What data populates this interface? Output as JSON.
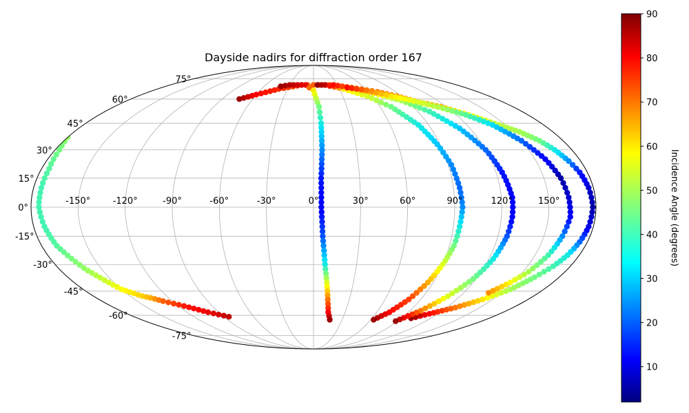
{
  "chart_data": {
    "type": "scatter",
    "projection": "mollweide",
    "title": "Dayside nadirs for diffraction order 167",
    "xlabel": "",
    "ylabel": "",
    "x_ticks": [
      "-150°",
      "-120°",
      "-90°",
      "-60°",
      "-30°",
      "0°",
      "30°",
      "60°",
      "90°",
      "120°",
      "150°"
    ],
    "y_ticks": [
      "75°",
      "60°",
      "45°",
      "30°",
      "15°",
      "0°",
      "-15°",
      "-30°",
      "-45°",
      "-60°",
      "-75°"
    ],
    "grid": true,
    "colorbar": {
      "label": "Incidence Angle (degrees)",
      "colormap": "jet",
      "range": [
        2,
        90
      ],
      "ticks": [
        "10",
        "20",
        "30",
        "40",
        "50",
        "60",
        "70",
        "80",
        "90"
      ]
    },
    "series": [
      {
        "points": [
          [
            -73,
            60
          ],
          [
            -60,
            63
          ],
          [
            -40,
            67
          ],
          [
            -15,
            70
          ],
          [
            0,
            70
          ],
          [
            20,
            70
          ],
          [
            45,
            68
          ],
          [
            70,
            65
          ],
          [
            85,
            62
          ],
          [
            100,
            58
          ],
          [
            115,
            55
          ],
          [
            130,
            50
          ],
          [
            145,
            44
          ],
          [
            155,
            40
          ],
          [
            163,
            35
          ],
          [
            168,
            30
          ],
          [
            172,
            24
          ],
          [
            175,
            18
          ],
          [
            177,
            10
          ],
          [
            178,
            0
          ],
          [
            177,
            -10
          ],
          [
            175,
            -18
          ],
          [
            172,
            -25
          ],
          [
            168,
            -31
          ],
          [
            162,
            -37
          ],
          [
            154,
            -44
          ],
          [
            142,
            -50
          ],
          [
            128,
            -55
          ],
          [
            112,
            -59
          ],
          [
            100,
            -62
          ]
        ],
        "incidence": [
          88,
          80,
          77,
          73,
          72,
          73,
          72,
          70,
          68,
          68,
          63,
          58,
          52,
          50,
          45,
          35,
          25,
          15,
          8,
          5,
          10,
          22,
          35,
          40,
          45,
          50,
          60,
          70,
          80,
          88
        ]
      },
      {
        "points": [
          [
            -40,
            69
          ],
          [
            -30,
            70
          ],
          [
            -20,
            70
          ],
          [
            -10,
            70
          ],
          [
            0,
            66
          ],
          [
            5,
            55
          ],
          [
            6,
            45
          ],
          [
            6,
            30
          ],
          [
            5,
            15
          ],
          [
            5,
            0
          ],
          [
            6,
            -15
          ],
          [
            8,
            -30
          ],
          [
            10,
            -40
          ],
          [
            12,
            -50
          ],
          [
            14,
            -58
          ],
          [
            17,
            -63
          ]
        ],
        "incidence": [
          88,
          86,
          84,
          82,
          60,
          45,
          35,
          25,
          15,
          12,
          20,
          35,
          55,
          70,
          80,
          88
        ]
      },
      {
        "points": [
          [
            5,
            70
          ],
          [
            15,
            70
          ],
          [
            35,
            67
          ],
          [
            55,
            62
          ],
          [
            70,
            55
          ],
          [
            82,
            44
          ],
          [
            88,
            33
          ],
          [
            92,
            22
          ],
          [
            94,
            10
          ],
          [
            95,
            0
          ],
          [
            94,
            -10
          ],
          [
            93,
            -20
          ],
          [
            90,
            -30
          ],
          [
            86,
            -40
          ],
          [
            80,
            -50
          ],
          [
            72,
            -58
          ],
          [
            63,
            -63
          ]
        ],
        "incidence": [
          88,
          85,
          60,
          55,
          45,
          35,
          30,
          25,
          22,
          25,
          35,
          45,
          55,
          65,
          75,
          80,
          88
        ]
      },
      {
        "points": [
          [
            25,
            70
          ],
          [
            45,
            68
          ],
          [
            65,
            64
          ],
          [
            85,
            59
          ],
          [
            100,
            52
          ],
          [
            112,
            42
          ],
          [
            120,
            30
          ],
          [
            124,
            18
          ],
          [
            127,
            5
          ],
          [
            127,
            -5
          ],
          [
            126,
            -15
          ],
          [
            123,
            -27
          ],
          [
            118,
            -38
          ],
          [
            110,
            -48
          ],
          [
            100,
            -57
          ],
          [
            88,
            -64
          ]
        ],
        "incidence": [
          80,
          70,
          60,
          50,
          40,
          30,
          22,
          15,
          12,
          12,
          20,
          35,
          45,
          55,
          70,
          88
        ]
      },
      {
        "points": [
          [
            40,
            68
          ],
          [
            60,
            66
          ],
          [
            80,
            62
          ],
          [
            100,
            58
          ],
          [
            115,
            54
          ],
          [
            128,
            50
          ],
          [
            140,
            44
          ],
          [
            150,
            35
          ],
          [
            157,
            25
          ],
          [
            161,
            15
          ],
          [
            163,
            5
          ],
          [
            164,
            -5
          ],
          [
            162,
            -15
          ],
          [
            159,
            -25
          ],
          [
            154,
            -34
          ],
          [
            148,
            -40
          ],
          [
            140,
            -46
          ]
        ],
        "incidence": [
          80,
          70,
          60,
          55,
          50,
          42,
          32,
          22,
          12,
          5,
          8,
          12,
          25,
          40,
          50,
          58,
          68
        ]
      },
      {
        "points": [
          [
            -180,
            37
          ],
          [
            -177,
            30
          ],
          [
            -175,
            20
          ],
          [
            -175,
            10
          ],
          [
            -175,
            0
          ],
          [
            -173,
            -10
          ],
          [
            -170,
            -20
          ],
          [
            -162,
            -32
          ],
          [
            -150,
            -44
          ],
          [
            -140,
            -48
          ],
          [
            -135,
            -49
          ],
          [
            -128,
            -51
          ],
          [
            -115,
            -54
          ],
          [
            -100,
            -58
          ],
          [
            -85,
            -61
          ]
        ],
        "incidence": [
          48,
          45,
          42,
          40,
          40,
          40,
          42,
          48,
          58,
          62,
          65,
          72,
          78,
          82,
          85
        ]
      }
    ]
  }
}
